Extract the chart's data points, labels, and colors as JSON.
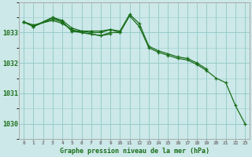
{
  "background_color": "#cce8e8",
  "grid_color": "#99cccc",
  "line_color": "#1a6e1a",
  "title": "Graphe pression niveau de la mer (hPa)",
  "yticks": [
    1030,
    1031,
    1032,
    1033
  ],
  "ylim": [
    1029.5,
    1034.0
  ],
  "xlim": [
    -0.5,
    23.5
  ],
  "series": [
    {
      "x": [
        0,
        1,
        3,
        4,
        5,
        6,
        7,
        8,
        9,
        10,
        11,
        12,
        13,
        14,
        15,
        16,
        17,
        18,
        19
      ],
      "y": [
        1033.35,
        1033.2,
        1033.5,
        1033.4,
        1033.15,
        1033.05,
        1033.05,
        1033.05,
        1033.1,
        1033.05,
        1033.6,
        1033.3,
        1032.55,
        1032.4,
        1032.3,
        1032.2,
        1032.15,
        1032.0,
        1031.8
      ]
    },
    {
      "x": [
        0,
        1,
        3,
        4,
        5,
        6,
        7,
        8,
        9,
        10,
        11,
        12,
        13,
        14,
        15,
        16,
        17,
        18,
        19,
        20,
        21,
        22,
        23
      ],
      "y": [
        1033.35,
        1033.2,
        1033.5,
        1033.35,
        1033.05,
        1033.05,
        1033.0,
        1033.0,
        1033.1,
        1033.0,
        1033.55,
        1033.2,
        1032.5,
        1032.35,
        1032.25,
        1032.15,
        1032.1,
        1031.95,
        1031.75,
        1031.5,
        1031.35,
        1030.6,
        1030.0
      ]
    },
    {
      "x": [
        0,
        1,
        3,
        4,
        5,
        6,
        7,
        8,
        9,
        10
      ],
      "y": [
        1033.35,
        1033.25,
        1033.4,
        1033.3,
        1033.1,
        1033.0,
        1032.95,
        1032.9,
        1033.0,
        1033.0
      ]
    },
    {
      "x": [
        0,
        1,
        3,
        4,
        5,
        6,
        7,
        8,
        9
      ],
      "y": [
        1033.35,
        1033.2,
        1033.45,
        1033.35,
        1033.05,
        1033.0,
        1032.95,
        1032.9,
        1032.95
      ]
    }
  ]
}
